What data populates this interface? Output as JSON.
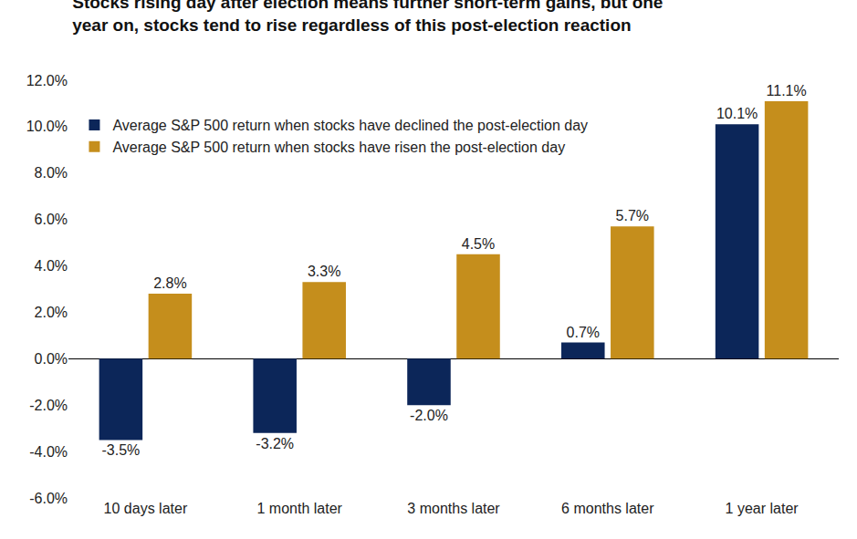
{
  "chart_data": {
    "type": "bar",
    "title": "Stocks rising day after election means further short-term gains, but one year on, stocks tend to rise regardless of this post-election reaction",
    "categories": [
      "10 days later",
      "1 month later",
      "3 months later",
      "6 months later",
      "1 year later"
    ],
    "series": [
      {
        "name": "Average S&P 500 return when stocks have declined the post-election day",
        "color": "#0c2659",
        "values": [
          -3.5,
          -3.2,
          -2.0,
          0.7,
          10.1
        ],
        "value_labels": [
          "-3.5%",
          "-3.2%",
          "-2.0%",
          "0.7%",
          "10.1%"
        ]
      },
      {
        "name": "Average S&P 500 return when stocks have risen the post-election day",
        "color": "#c58e1c",
        "values": [
          2.8,
          3.3,
          4.5,
          5.7,
          11.1
        ],
        "value_labels": [
          "2.8%",
          "3.3%",
          "4.5%",
          "5.7%",
          "11.1%"
        ]
      }
    ],
    "ylim": [
      -6,
      12
    ],
    "yticks": [
      {
        "value": -6,
        "label": "-6.0%"
      },
      {
        "value": -4,
        "label": "-4.0%"
      },
      {
        "value": -2,
        "label": "-2.0%"
      },
      {
        "value": 0,
        "label": "0.0%"
      },
      {
        "value": 2,
        "label": "2.0%"
      },
      {
        "value": 4,
        "label": "4.0%"
      },
      {
        "value": 6,
        "label": "6.0%"
      },
      {
        "value": 8,
        "label": "8.0%"
      },
      {
        "value": 10,
        "label": "10.0%"
      },
      {
        "value": 12,
        "label": "12.0%"
      }
    ],
    "grid": false,
    "legend": "upper left",
    "data_labels": true
  }
}
